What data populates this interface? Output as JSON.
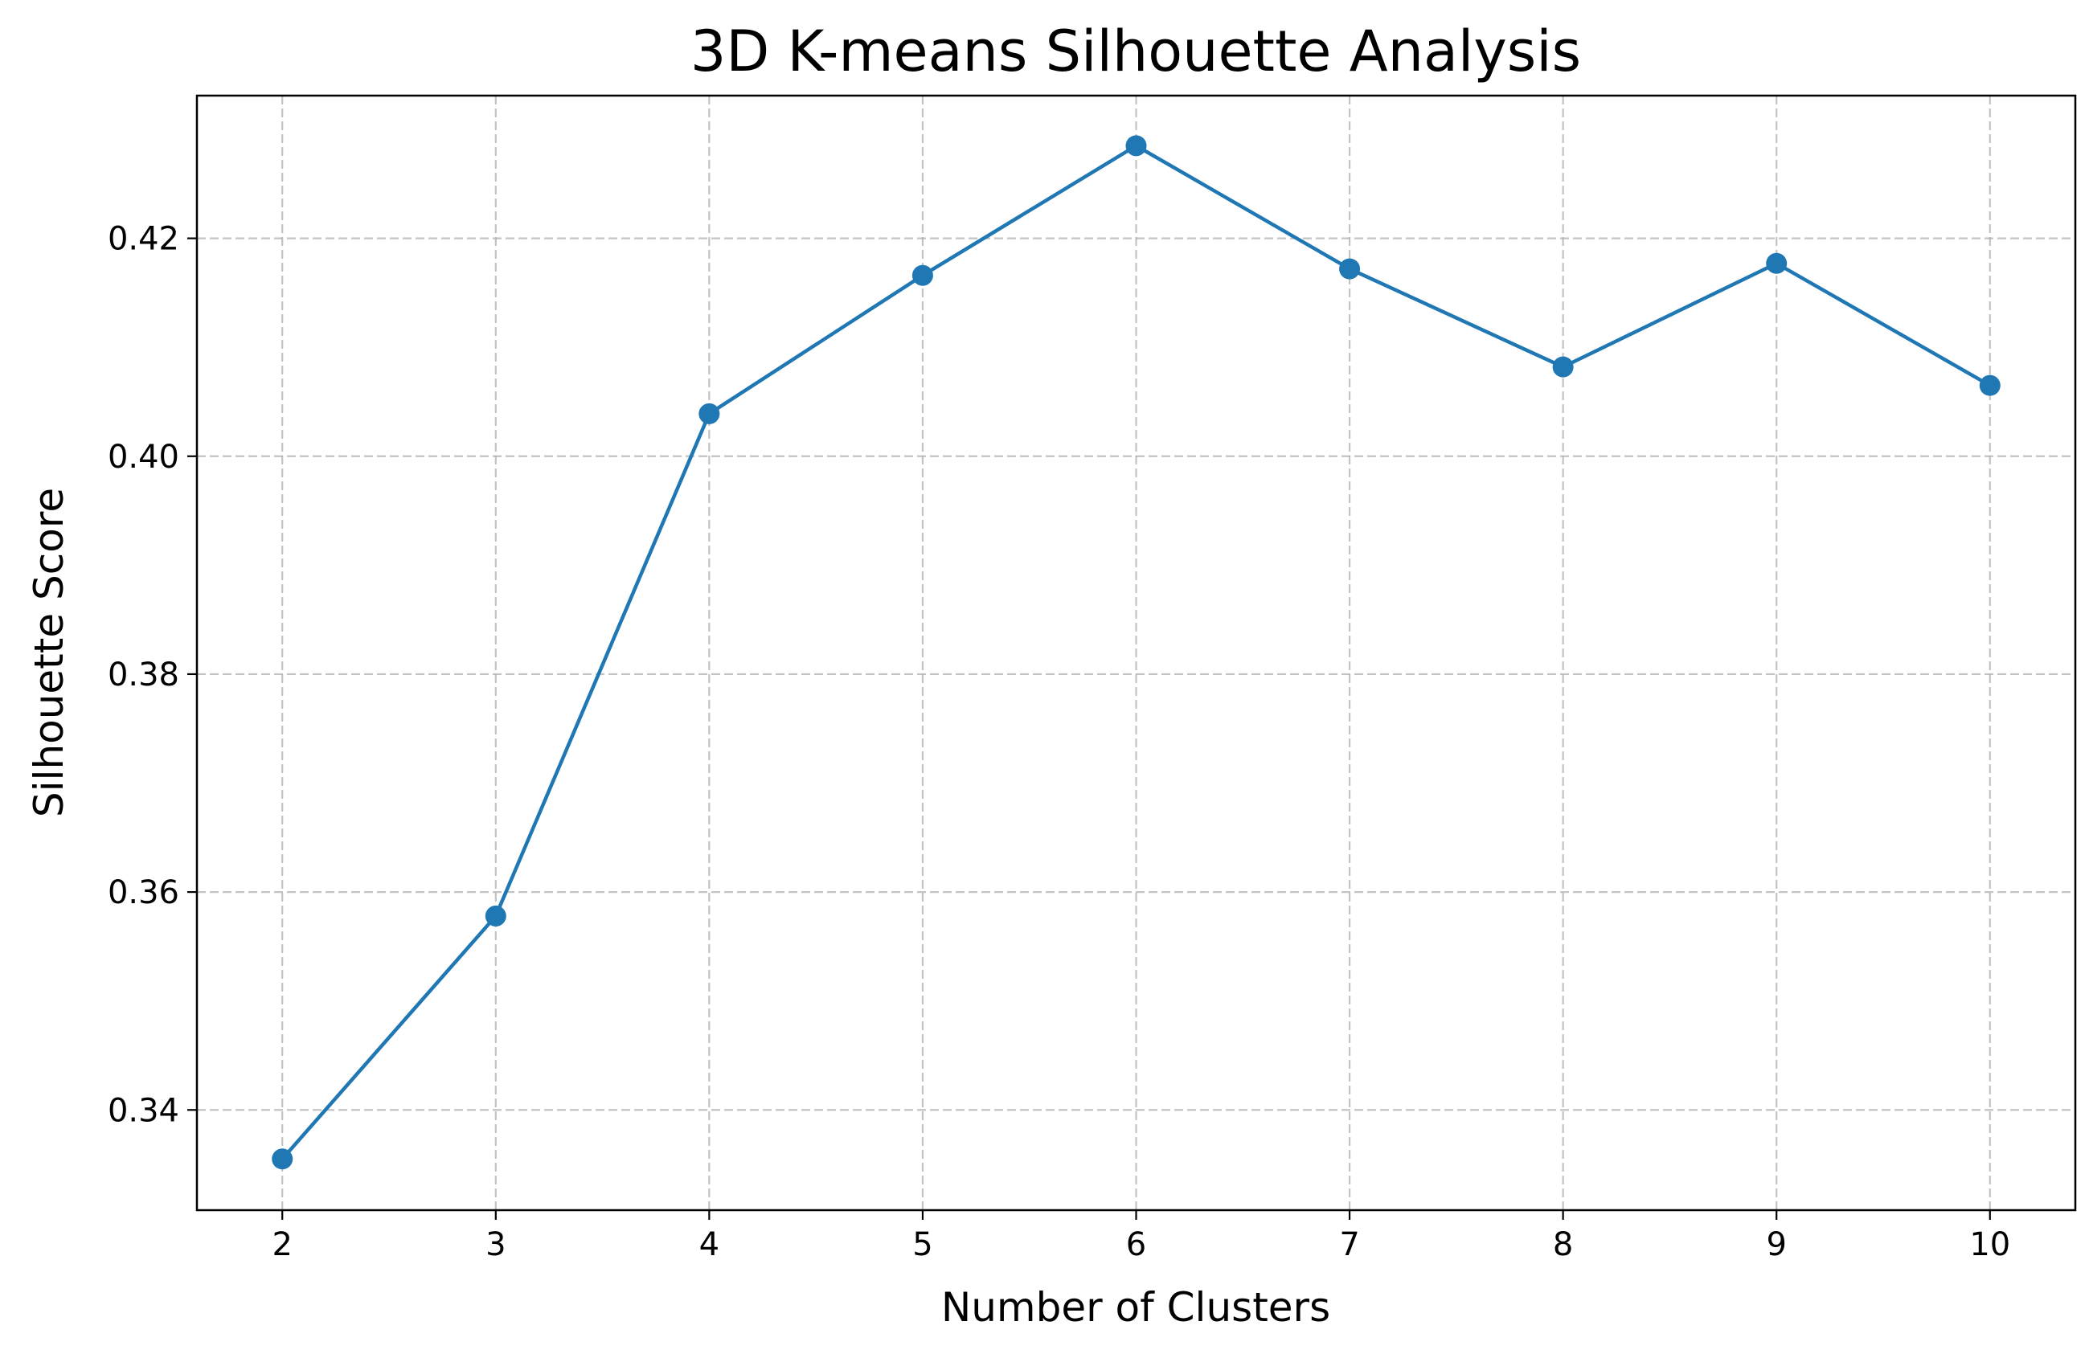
{
  "chart_data": {
    "type": "line",
    "title": "3D K-means Silhouette Analysis",
    "xlabel": "Number of Clusters",
    "ylabel": "Silhouette Score",
    "x": [
      2,
      3,
      4,
      5,
      6,
      7,
      8,
      9,
      10
    ],
    "series": [
      {
        "values": [
          0.3355,
          0.3578,
          0.4039,
          0.4166,
          0.4285,
          0.4172,
          0.4082,
          0.4177,
          0.4065
        ],
        "color": "#1f77b4",
        "marker": "circle"
      }
    ],
    "xticks": [
      2,
      3,
      4,
      5,
      6,
      7,
      8,
      9,
      10
    ],
    "xtick_labels": [
      "2",
      "3",
      "4",
      "5",
      "6",
      "7",
      "8",
      "9",
      "10"
    ],
    "yticks": [
      0.34,
      0.36,
      0.38,
      0.4,
      0.42
    ],
    "ytick_labels": [
      "0.34",
      "0.36",
      "0.38",
      "0.40",
      "0.42"
    ],
    "xlim": [
      1.6,
      10.4
    ],
    "ylim": [
      0.3308,
      0.4331
    ],
    "grid": true,
    "legend": "none"
  }
}
